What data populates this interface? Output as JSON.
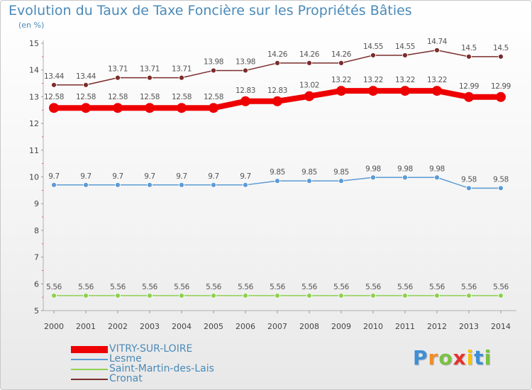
{
  "chart_data": {
    "type": "line",
    "title": "Evolution du Taux de Taxe Foncière sur les Propriétés Bâties",
    "unit_label": "(en %)",
    "categories": [
      "2000",
      "2001",
      "2002",
      "2003",
      "2004",
      "2005",
      "2006",
      "2007",
      "2008",
      "2009",
      "2010",
      "2011",
      "2012",
      "2013",
      "2014"
    ],
    "ylim": [
      5,
      15
    ],
    "yticks": [
      5,
      6,
      7,
      8,
      9,
      10,
      11,
      12,
      13,
      14,
      15
    ],
    "grid": false,
    "legend_position": "bottom-left",
    "series": [
      {
        "name": "VITRY-SUR-LOIRE",
        "color": "#ee0000",
        "emphasis": true,
        "values": [
          12.58,
          12.58,
          12.58,
          12.58,
          12.58,
          12.58,
          12.83,
          12.83,
          13.02,
          13.22,
          13.22,
          13.22,
          13.22,
          12.99,
          12.99
        ],
        "labels": [
          "12.58",
          "12.58",
          "12.58",
          "12.58",
          "12.58",
          "12.58",
          "12.83",
          "12.83",
          "13.02",
          "13.22",
          "13.22",
          "13.22",
          "13.22",
          "12.99",
          "12.99"
        ]
      },
      {
        "name": "Lesme",
        "color": "#5b9bd5",
        "emphasis": false,
        "values": [
          9.7,
          9.7,
          9.7,
          9.7,
          9.7,
          9.7,
          9.7,
          9.85,
          9.85,
          9.85,
          9.98,
          9.98,
          9.98,
          9.58,
          9.58
        ],
        "labels": [
          "9.7",
          "9.7",
          "9.7",
          "9.7",
          "9.7",
          "9.7",
          "9.7",
          "9.85",
          "9.85",
          "9.85",
          "9.98",
          "9.98",
          "9.98",
          "9.58",
          "9.58"
        ]
      },
      {
        "name": "Saint-Martin-des-Lais",
        "color": "#8fd14f",
        "emphasis": false,
        "values": [
          5.56,
          5.56,
          5.56,
          5.56,
          5.56,
          5.56,
          5.56,
          5.56,
          5.56,
          5.56,
          5.56,
          5.56,
          5.56,
          5.56,
          5.56
        ],
        "labels": [
          "5.56",
          "5.56",
          "5.56",
          "5.56",
          "5.56",
          "5.56",
          "5.56",
          "5.56",
          "5.56",
          "5.56",
          "5.56",
          "5.56",
          "5.56",
          "5.56",
          "5.56"
        ]
      },
      {
        "name": "Cronat",
        "color": "#7b2c2c",
        "emphasis": false,
        "values": [
          13.44,
          13.44,
          13.71,
          13.71,
          13.71,
          13.98,
          13.98,
          14.26,
          14.26,
          14.26,
          14.55,
          14.55,
          14.74,
          14.5,
          14.5
        ],
        "labels": [
          "13.44",
          "13.44",
          "13.71",
          "13.71",
          "13.71",
          "13.98",
          "13.98",
          "14.26",
          "14.26",
          "14.26",
          "14.55",
          "14.55",
          "14.74",
          "14.5",
          "14.5"
        ]
      }
    ]
  },
  "logo": {
    "letters": [
      "P",
      "r",
      "o",
      "x",
      "i",
      "t",
      "i"
    ],
    "colors": [
      "#3d8fd6",
      "#f28c28",
      "#7ac143",
      "#e5322d",
      "#f4c20d",
      "#3d8fd6",
      "#7ac143"
    ]
  }
}
